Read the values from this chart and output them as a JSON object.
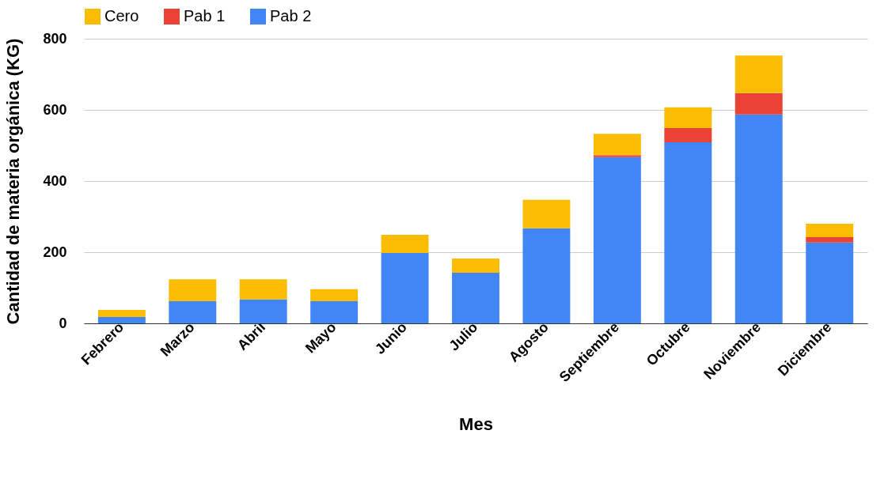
{
  "chart_data": {
    "type": "bar",
    "stacked": true,
    "xlabel": "Mes",
    "ylabel": "Cantidad de materia orgánica (KG)",
    "categories": [
      "Febrero",
      "Marzo",
      "Abril",
      "Mayo",
      "Junio",
      "Julio",
      "Agosto",
      "Septiembre",
      "Octubre",
      "Noviembre",
      "Diciembre"
    ],
    "series": [
      {
        "name": "Pab 2",
        "color": "#4285f4",
        "values": [
          18,
          62,
          67,
          62,
          198,
          142,
          267,
          467,
          509,
          587,
          227
        ]
      },
      {
        "name": "Pab 1",
        "color": "#ea4335",
        "values": [
          0,
          0,
          0,
          0,
          0,
          0,
          0,
          6,
          40,
          60,
          15
        ]
      },
      {
        "name": "Cero",
        "color": "#fbbc04",
        "values": [
          20,
          62,
          57,
          34,
          51,
          40,
          80,
          60,
          58,
          106,
          38
        ]
      }
    ],
    "ylim": [
      0,
      800
    ],
    "yticks": [
      0,
      200,
      400,
      600,
      800
    ],
    "grid": "y",
    "legend": "top"
  }
}
